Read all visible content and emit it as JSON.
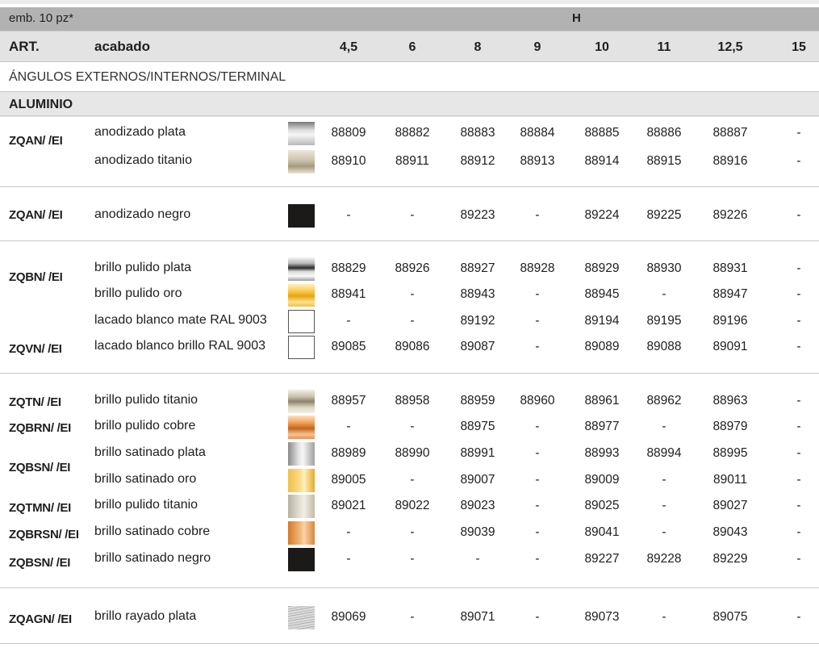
{
  "header": {
    "pack_note": "emb. 10 pz*",
    "h_label": "H",
    "art_label": "ART.",
    "finish_label": "acabado",
    "sizes": [
      "4,5",
      "6",
      "8",
      "9",
      "10",
      "11",
      "12,5",
      "15"
    ]
  },
  "section_title": "ÁNGULOS EXTERNOS/INTERNOS/TERMINAL",
  "material_title": "ALUMINIO",
  "rows": [
    {
      "art": "ZQAN/ /EI",
      "finish": "anodizado plata",
      "swatch": "silver-gradient",
      "values": [
        "88809",
        "88882",
        "88883",
        "88884",
        "88885",
        "88886",
        "88887",
        "-"
      ]
    },
    {
      "art": "",
      "finish": "anodizado titanio",
      "swatch": "titanium-gradient",
      "values": [
        "88910",
        "88911",
        "88912",
        "88913",
        "88914",
        "88915",
        "88916",
        "-"
      ]
    },
    {
      "art": "ZQAN/ /EI",
      "finish": "anodizado negro",
      "swatch": "black",
      "values": [
        "-",
        "-",
        "89223",
        "-",
        "89224",
        "89225",
        "89226",
        "-"
      ]
    },
    {
      "art": "ZQBN/ /EI",
      "finish": "brillo pulido plata",
      "swatch": "polished-silver",
      "values": [
        "88829",
        "88926",
        "88927",
        "88928",
        "88929",
        "88930",
        "88931",
        "-"
      ]
    },
    {
      "art": "",
      "finish": "brillo pulido oro",
      "swatch": "polished-gold",
      "values": [
        "88941",
        "-",
        "88943",
        "-",
        "88945",
        "-",
        "88947",
        "-"
      ]
    },
    {
      "art": "",
      "finish": "lacado blanco mate RAL 9003",
      "swatch": "white",
      "values": [
        "-",
        "-",
        "89192",
        "-",
        "89194",
        "89195",
        "89196",
        "-"
      ]
    },
    {
      "art": "ZQVN/ /EI",
      "finish": "lacado blanco brillo RAL 9003",
      "swatch": "white",
      "values": [
        "89085",
        "89086",
        "89087",
        "-",
        "89089",
        "89088",
        "89091",
        "-"
      ]
    },
    {
      "art": "ZQTN/ /EI",
      "finish": "brillo pulido titanio",
      "swatch": "polished-titanium",
      "values": [
        "88957",
        "88958",
        "88959",
        "88960",
        "88961",
        "88962",
        "88963",
        "-"
      ]
    },
    {
      "art": "ZQBRN/ /EI",
      "finish": "brillo pulido cobre",
      "swatch": "polished-copper",
      "values": [
        "-",
        "-",
        "88975",
        "-",
        "88977",
        "-",
        "88979",
        "-"
      ]
    },
    {
      "art": "ZQBSN/ /EI",
      "finish": "brillo satinado plata",
      "swatch": "satin-silver",
      "values": [
        "88989",
        "88990",
        "88991",
        "-",
        "88993",
        "88994",
        "88995",
        "-"
      ]
    },
    {
      "art": "",
      "finish": "brillo satinado oro",
      "swatch": "satin-gold",
      "values": [
        "89005",
        "-",
        "89007",
        "-",
        "89009",
        "-",
        "89011",
        "-"
      ]
    },
    {
      "art": "ZQTMN/ /EI",
      "finish": "brillo pulido titanio",
      "swatch": "titanium-matte",
      "values": [
        "89021",
        "89022",
        "89023",
        "-",
        "89025",
        "-",
        "89027",
        "-"
      ]
    },
    {
      "art": "ZQBRSN/ /EI",
      "finish": "brillo satinado cobre",
      "swatch": "satin-copper",
      "values": [
        "-",
        "-",
        "89039",
        "-",
        "89041",
        "-",
        "89043",
        "-"
      ]
    },
    {
      "art": "ZQBSN/ /EI",
      "finish": "brillo satinado negro",
      "swatch": "black",
      "values": [
        "-",
        "-",
        "-",
        "-",
        "89227",
        "89228",
        "89229",
        "-"
      ]
    },
    {
      "art": "ZQAGN/ /EI",
      "finish": "brillo rayado plata",
      "swatch": "brushed-silver",
      "values": [
        "89069",
        "-",
        "89071",
        "-",
        "89073",
        "-",
        "89075",
        "-"
      ]
    }
  ]
}
